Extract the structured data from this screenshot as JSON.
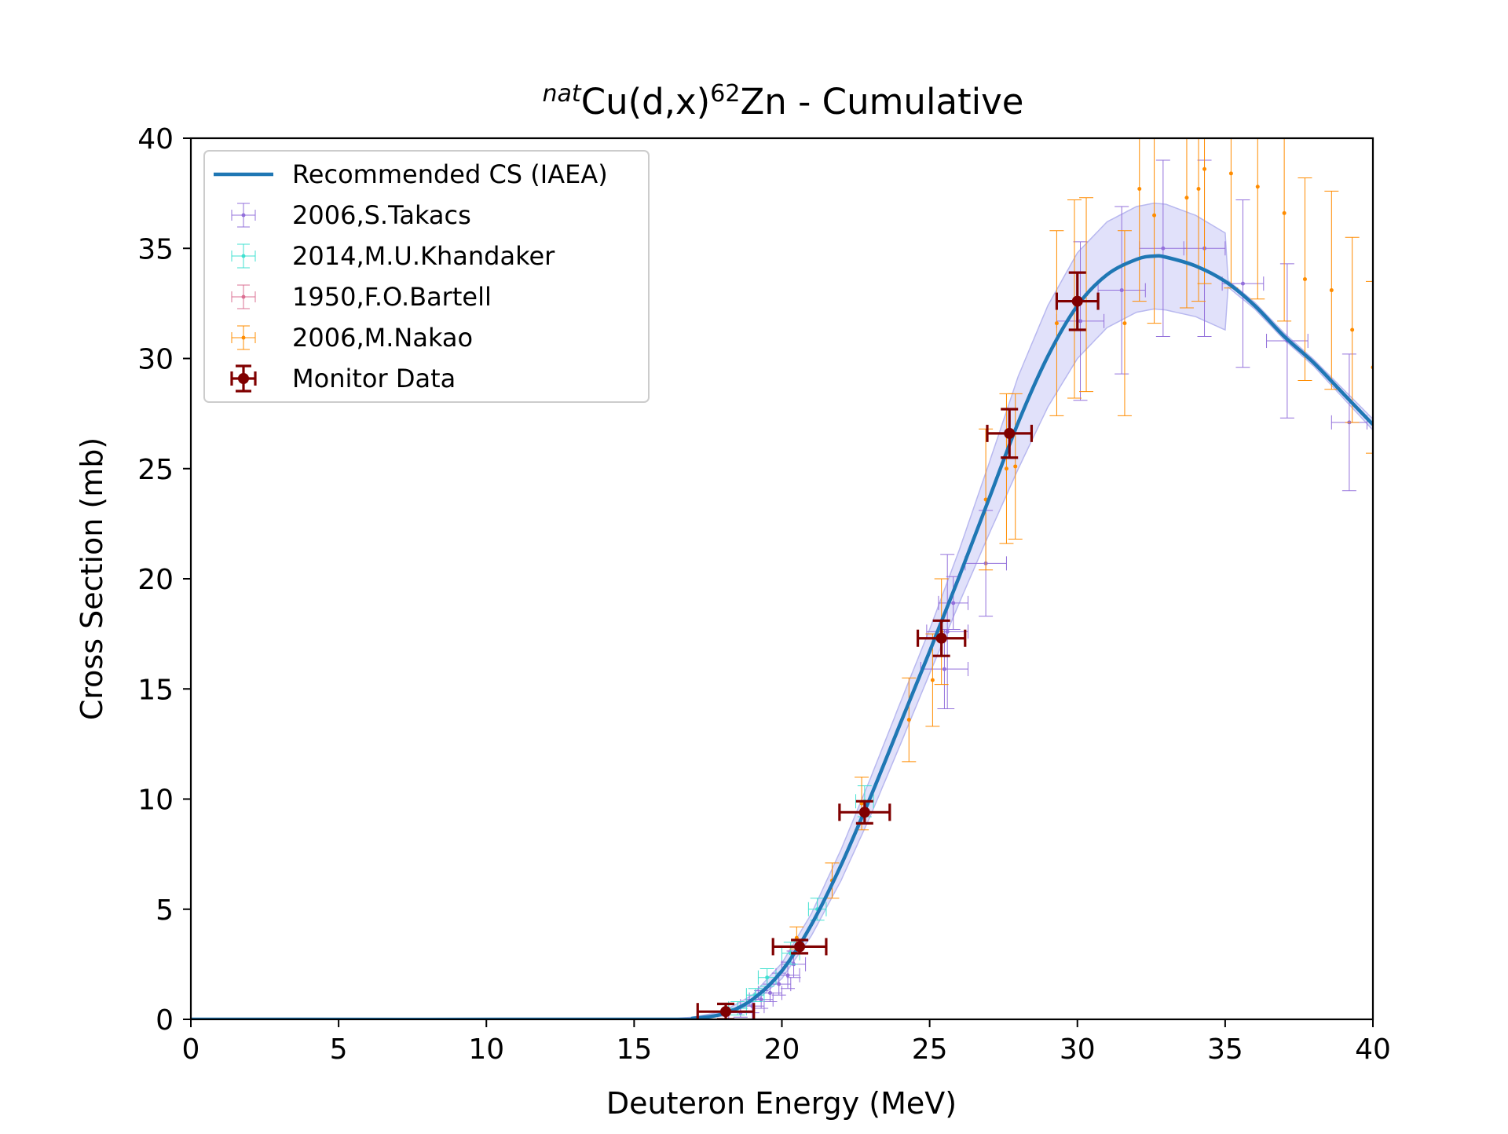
{
  "chart_data": {
    "type": "scatter",
    "title": {
      "prefix_sup": "nat",
      "main": "Cu(d,x)",
      "mass_sup": "62",
      "element": "Zn",
      "suffix": " - Cumulative"
    },
    "xlabel": "Deuteron Energy (MeV)",
    "ylabel": "Cross Section (mb)",
    "xlim": [
      0,
      40
    ],
    "ylim": [
      0,
      40
    ],
    "xticks": [
      0,
      5,
      10,
      15,
      20,
      25,
      30,
      35,
      40
    ],
    "yticks": [
      0,
      5,
      10,
      15,
      20,
      25,
      30,
      35,
      40
    ],
    "grid": false,
    "legend_position": "upper-left",
    "legend": [
      {
        "label": "Recommended CS (IAEA)",
        "kind": "line",
        "color": "#1f77b4"
      },
      {
        "label": "2006,S.Takacs",
        "kind": "errorbar-small",
        "color": "#9370db"
      },
      {
        "label": "2014,M.U.Khandaker",
        "kind": "errorbar-small",
        "color": "#40e0d0"
      },
      {
        "label": "1950,F.O.Bartell",
        "kind": "errorbar-small",
        "color": "#db7093"
      },
      {
        "label": "2006,M.Nakao",
        "kind": "errorbar-small",
        "color": "#ff8c00"
      },
      {
        "label": "Monitor Data",
        "kind": "errorbar-large",
        "color": "#800000"
      }
    ],
    "recommended_curve": {
      "name": "Recommended CS (IAEA)",
      "color": "#1f77b4",
      "band_color": "#c8c8f5",
      "points": [
        [
          0,
          0
        ],
        [
          16,
          0
        ],
        [
          17,
          0.05
        ],
        [
          18,
          0.25
        ],
        [
          19,
          0.9
        ],
        [
          20,
          2.2
        ],
        [
          21,
          4.3
        ],
        [
          22,
          7.0
        ],
        [
          23,
          10.1
        ],
        [
          24,
          13.4
        ],
        [
          25,
          16.7
        ],
        [
          26,
          20.1
        ],
        [
          27,
          23.6
        ],
        [
          28,
          27.1
        ],
        [
          29,
          30.1
        ],
        [
          30,
          32.4
        ],
        [
          31,
          33.8
        ],
        [
          32,
          34.5
        ],
        [
          32.6,
          34.65
        ],
        [
          33,
          34.6
        ],
        [
          34,
          34.2
        ],
        [
          35,
          33.5
        ],
        [
          36,
          32.4
        ],
        [
          37,
          31.0
        ],
        [
          38,
          29.8
        ],
        [
          39,
          28.4
        ],
        [
          40,
          27.0
        ]
      ],
      "band_halfwidth": [
        [
          0,
          0
        ],
        [
          16,
          0
        ],
        [
          17,
          0.05
        ],
        [
          18,
          0.1
        ],
        [
          19,
          0.2
        ],
        [
          20,
          0.35
        ],
        [
          21,
          0.5
        ],
        [
          22,
          0.7
        ],
        [
          23,
          0.85
        ],
        [
          24,
          0.95
        ],
        [
          25,
          1.0
        ],
        [
          26,
          1.2
        ],
        [
          27,
          1.6
        ],
        [
          28,
          2.1
        ],
        [
          29,
          2.3
        ],
        [
          30,
          2.4
        ],
        [
          31,
          2.4
        ],
        [
          32,
          2.4
        ],
        [
          33,
          2.4
        ],
        [
          34,
          2.3
        ],
        [
          35,
          2.2
        ],
        [
          35.01,
          0.15
        ],
        [
          36,
          0.15
        ],
        [
          38,
          0.15
        ],
        [
          39,
          0.2
        ],
        [
          40,
          0.25
        ]
      ]
    },
    "series": [
      {
        "name": "2006,S.Takacs",
        "color": "#9370db",
        "points": [
          {
            "x": 18.6,
            "y": 0.3,
            "xerr": 0.4,
            "yerr": 0.2
          },
          {
            "x": 19.0,
            "y": 0.6,
            "xerr": 0.4,
            "yerr": 0.3
          },
          {
            "x": 19.3,
            "y": 0.9,
            "xerr": 0.4,
            "yerr": 0.4
          },
          {
            "x": 19.6,
            "y": 1.2,
            "xerr": 0.4,
            "yerr": 0.4
          },
          {
            "x": 19.9,
            "y": 1.6,
            "xerr": 0.4,
            "yerr": 0.5
          },
          {
            "x": 20.2,
            "y": 2.0,
            "xerr": 0.4,
            "yerr": 0.6
          },
          {
            "x": 20.4,
            "y": 2.5,
            "xerr": 0.4,
            "yerr": 0.6
          },
          {
            "x": 25.5,
            "y": 15.9,
            "xerr": 0.8,
            "yerr": 1.8
          },
          {
            "x": 25.6,
            "y": 17.6,
            "xerr": 0.7,
            "yerr": 3.5
          },
          {
            "x": 25.8,
            "y": 18.9,
            "xerr": 0.5,
            "yerr": 1.2
          },
          {
            "x": 26.9,
            "y": 20.7,
            "xerr": 0.7,
            "yerr": 2.4
          },
          {
            "x": 30.1,
            "y": 31.7,
            "xerr": 0.8,
            "yerr": 3.6
          },
          {
            "x": 31.5,
            "y": 33.1,
            "xerr": 0.8,
            "yerr": 3.8
          },
          {
            "x": 32.9,
            "y": 35.0,
            "xerr": 0.8,
            "yerr": 4.0
          },
          {
            "x": 34.3,
            "y": 35.0,
            "xerr": 0.7,
            "yerr": 4.0
          },
          {
            "x": 35.6,
            "y": 33.4,
            "xerr": 0.7,
            "yerr": 3.8
          },
          {
            "x": 37.1,
            "y": 30.8,
            "xerr": 0.7,
            "yerr": 3.5
          },
          {
            "x": 39.2,
            "y": 27.1,
            "xerr": 0.6,
            "yerr": 3.1
          }
        ]
      },
      {
        "name": "2014,M.U.Khandaker",
        "color": "#40e0d0",
        "points": [
          {
            "x": 18.5,
            "y": 0.5,
            "xerr": 0.3,
            "yerr": 0.3
          },
          {
            "x": 19.1,
            "y": 1.1,
            "xerr": 0.3,
            "yerr": 0.3
          },
          {
            "x": 19.5,
            "y": 1.9,
            "xerr": 0.3,
            "yerr": 0.4
          },
          {
            "x": 20.3,
            "y": 3.0,
            "xerr": 0.3,
            "yerr": 0.5
          },
          {
            "x": 21.2,
            "y": 5.0,
            "xerr": 0.3,
            "yerr": 0.5
          },
          {
            "x": 22.8,
            "y": 9.9,
            "xerr": 0.3,
            "yerr": 0.7
          }
        ]
      },
      {
        "name": "1950,F.O.Bartell",
        "color": "#db7093",
        "points": []
      },
      {
        "name": "2006,M.Nakao",
        "color": "#ff8c00",
        "points": [
          {
            "x": 20.5,
            "y": 3.7,
            "xerr": 0,
            "yerr": 0.5
          },
          {
            "x": 21.7,
            "y": 6.3,
            "xerr": 0,
            "yerr": 0.8
          },
          {
            "x": 22.7,
            "y": 9.8,
            "xerr": 0,
            "yerr": 1.2
          },
          {
            "x": 24.3,
            "y": 13.6,
            "xerr": 0,
            "yerr": 1.9
          },
          {
            "x": 25.1,
            "y": 15.4,
            "xerr": 0,
            "yerr": 2.1
          },
          {
            "x": 25.4,
            "y": 17.6,
            "xerr": 0,
            "yerr": 2.4
          },
          {
            "x": 26.9,
            "y": 23.6,
            "xerr": 0,
            "yerr": 3.2
          },
          {
            "x": 27.6,
            "y": 25.0,
            "xerr": 0,
            "yerr": 3.4
          },
          {
            "x": 27.9,
            "y": 25.1,
            "xerr": 0,
            "yerr": 3.3
          },
          {
            "x": 29.3,
            "y": 31.6,
            "xerr": 0,
            "yerr": 4.2
          },
          {
            "x": 29.9,
            "y": 32.7,
            "xerr": 0,
            "yerr": 4.5
          },
          {
            "x": 30.3,
            "y": 32.9,
            "xerr": 0,
            "yerr": 4.4
          },
          {
            "x": 31.6,
            "y": 31.6,
            "xerr": 0,
            "yerr": 4.2
          },
          {
            "x": 32.1,
            "y": 37.7,
            "xerr": 0,
            "yerr": 5.1
          },
          {
            "x": 32.6,
            "y": 36.5,
            "xerr": 0,
            "yerr": 4.9
          },
          {
            "x": 33.7,
            "y": 37.3,
            "xerr": 0,
            "yerr": 5.0
          },
          {
            "x": 34.1,
            "y": 37.7,
            "xerr": 0,
            "yerr": 5.1
          },
          {
            "x": 34.3,
            "y": 38.6,
            "xerr": 0,
            "yerr": 5.2
          },
          {
            "x": 35.2,
            "y": 38.4,
            "xerr": 0,
            "yerr": 5.2
          },
          {
            "x": 36.1,
            "y": 37.8,
            "xerr": 0,
            "yerr": 5.1
          },
          {
            "x": 37.0,
            "y": 36.6,
            "xerr": 0,
            "yerr": 4.9
          },
          {
            "x": 37.7,
            "y": 33.6,
            "xerr": 0,
            "yerr": 4.6
          },
          {
            "x": 38.6,
            "y": 33.1,
            "xerr": 0,
            "yerr": 4.5
          },
          {
            "x": 39.3,
            "y": 31.3,
            "xerr": 0,
            "yerr": 4.2
          },
          {
            "x": 40.0,
            "y": 29.6,
            "xerr": 0,
            "yerr": 3.9
          }
        ]
      },
      {
        "name": "Monitor Data",
        "color": "#800000",
        "points": [
          {
            "x": 18.1,
            "y": 0.35,
            "xerr": 0.95,
            "yerr": 0.35
          },
          {
            "x": 20.6,
            "y": 3.3,
            "xerr": 0.9,
            "yerr": 0.3
          },
          {
            "x": 22.8,
            "y": 9.4,
            "xerr": 0.85,
            "yerr": 0.5
          },
          {
            "x": 25.4,
            "y": 17.3,
            "xerr": 0.8,
            "yerr": 0.8
          },
          {
            "x": 27.7,
            "y": 26.6,
            "xerr": 0.75,
            "yerr": 1.1
          },
          {
            "x": 30.0,
            "y": 32.6,
            "xerr": 0.7,
            "yerr": 1.3
          }
        ]
      }
    ]
  }
}
